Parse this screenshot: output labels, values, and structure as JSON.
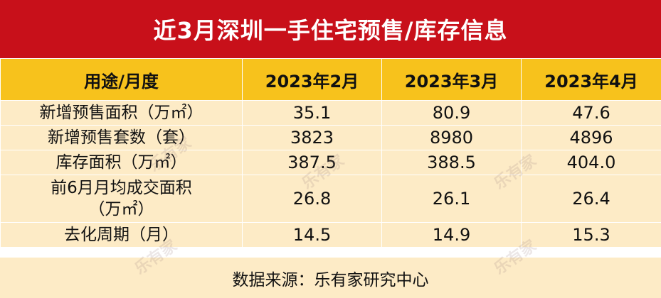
{
  "title": "近3月深圳一手住宅预售/库存信息",
  "table": {
    "headers": [
      "用途/月度",
      "2023年2月",
      "2023年3月",
      "2023年4月"
    ],
    "rows": [
      {
        "label": "新增预售面积（万㎡）",
        "values": [
          "35.1",
          "80.9",
          "47.6"
        ]
      },
      {
        "label": "新增预售套数（套）",
        "values": [
          "3823",
          "8980",
          "4896"
        ]
      },
      {
        "label": "库存面积（万㎡）",
        "values": [
          "387.5",
          "388.5",
          "404.0"
        ]
      },
      {
        "label_line1": "前6月月均成交面积",
        "label_line2": "（万㎡）",
        "values": [
          "26.8",
          "26.1",
          "26.4"
        ]
      },
      {
        "label": "去化周期（月）",
        "values": [
          "14.5",
          "14.9",
          "15.3"
        ]
      }
    ]
  },
  "source": "数据来源：乐有家研究中心",
  "watermark": "乐有家",
  "colors": {
    "title_bg": "#c8101a",
    "header_bg": "#f7c21c",
    "cell_bg": "#fdebc6"
  }
}
